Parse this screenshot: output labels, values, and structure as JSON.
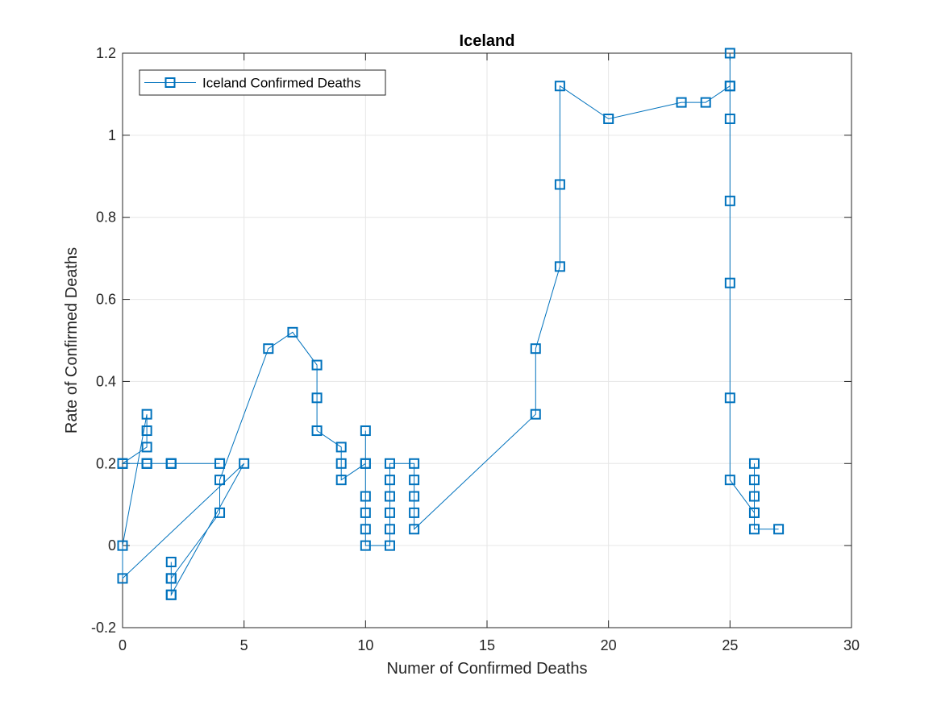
{
  "chart_data": {
    "type": "line",
    "title": "Iceland",
    "xlabel": "Numer of Confirmed Deaths",
    "ylabel": "Rate of Confirmed Deaths",
    "xlim": [
      0,
      30
    ],
    "ylim": [
      -0.2,
      1.2
    ],
    "xticks": [
      0,
      5,
      10,
      15,
      20,
      25,
      30
    ],
    "yticks": [
      -0.2,
      0,
      0.2,
      0.4,
      0.6,
      0.8,
      1,
      1.2
    ],
    "xtick_labels": [
      "0",
      "5",
      "10",
      "15",
      "20",
      "25",
      "30"
    ],
    "ytick_labels": [
      "-0.2",
      "0",
      "0.2",
      "0.4",
      "0.6",
      "0.8",
      "1",
      "1.2"
    ],
    "grid": true,
    "legend_position": "top-left",
    "marker": "square",
    "colors": {
      "series": "#0072BD",
      "grid": "#e6e6e6",
      "axis": "#262626"
    },
    "series": [
      {
        "name": "Iceland Confirmed Deaths",
        "x": [
          0,
          0,
          1,
          1,
          1,
          2,
          2,
          2,
          4,
          4,
          0,
          1,
          1,
          1,
          0,
          0,
          5,
          2,
          2,
          2,
          2,
          2,
          4,
          4,
          6,
          7,
          8,
          8,
          8,
          9,
          9,
          9,
          10,
          10,
          10,
          10,
          10,
          10,
          10,
          11,
          11,
          11,
          11,
          11,
          11,
          12,
          12,
          12,
          12,
          12,
          17,
          17,
          18,
          18,
          18,
          20,
          23,
          24,
          25,
          25,
          25,
          25,
          25,
          25,
          25,
          25,
          26,
          26,
          26,
          26,
          26,
          26,
          27
        ],
        "y": [
          0.2,
          0.2,
          0.2,
          0.2,
          0.2,
          0.2,
          0.2,
          0.2,
          0.2,
          0.2,
          0.2,
          0.24,
          0.28,
          0.32,
          0.0,
          -0.08,
          0.2,
          -0.12,
          -0.12,
          -0.08,
          -0.04,
          -0.08,
          0.08,
          0.16,
          0.48,
          0.52,
          0.44,
          0.36,
          0.28,
          0.24,
          0.2,
          0.16,
          0.2,
          0.28,
          0.2,
          0.12,
          0.08,
          0.04,
          0.0,
          0.0,
          0.04,
          0.08,
          0.12,
          0.16,
          0.2,
          0.2,
          0.16,
          0.12,
          0.08,
          0.04,
          0.32,
          0.48,
          0.68,
          0.88,
          1.12,
          1.04,
          1.08,
          1.08,
          1.12,
          1.2,
          1.12,
          1.04,
          0.84,
          0.64,
          0.36,
          0.16,
          0.08,
          0.2,
          0.16,
          0.12,
          0.08,
          0.04,
          0.04
        ]
      }
    ]
  }
}
